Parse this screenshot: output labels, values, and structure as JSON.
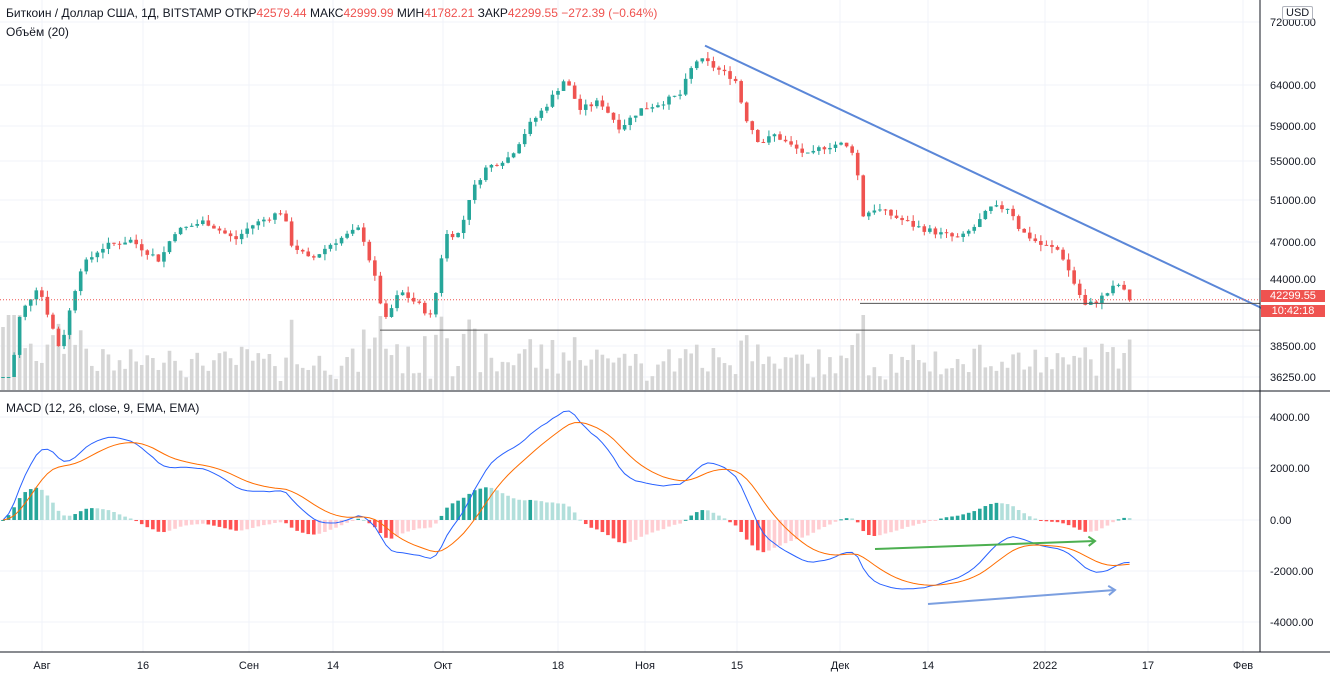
{
  "header": {
    "symbol": "Биткоин / Доллар США, 1Д, BITSTAMP",
    "open_label": "ОТКР",
    "open": "42579.44",
    "high_label": "МАКС",
    "high": "42999.99",
    "low_label": "МИН",
    "low": "41782.21",
    "close_label": "ЗАКР",
    "close": "42299.55",
    "change": "−272.39 (−0.64%)",
    "volume_label": "Объём (20)",
    "macd_label": "MACD (12, 26, close, 9, EMA, EMA)"
  },
  "currency": "USD",
  "price_tag": {
    "price": "42299.55",
    "countdown": "10:42:18"
  },
  "chart_data": [
    {
      "type": "candlestick",
      "price_axis_ticks": [
        "72000.00",
        "64000.00",
        "59000.00",
        "55000.00",
        "51000.00",
        "47000.00",
        "44000.00",
        "38500.00",
        "36250.00"
      ],
      "time_axis_labels": [
        "Авг",
        "16",
        "Сен",
        "14",
        "Окт",
        "18",
        "Ноя",
        "15",
        "Дек",
        "14",
        "2022",
        "17",
        "Фев"
      ],
      "last_price": 42299.55,
      "colors": {
        "up": "#26a69a",
        "down": "#ef5350",
        "trendline": "#5b87d8",
        "level": "#555555"
      }
    },
    {
      "type": "bar",
      "name": "Объём (20)"
    },
    {
      "type": "line",
      "name": "MACD (12, 26, close, 9, EMA, EMA)",
      "axis_ticks": [
        "4000.00",
        "2000.00",
        "0.00",
        "-2000.00",
        "-4000.00"
      ],
      "colors": {
        "macd": "#2962ff",
        "signal": "#ff6d00",
        "hist_up_strong": "#26a69a",
        "hist_up_weak": "#b2dfdb",
        "hist_down_strong": "#ff5252",
        "hist_down_weak": "#ffcdd2",
        "divergence_up": "#4caf50",
        "divergence_down": "#7b9fe0"
      }
    }
  ]
}
